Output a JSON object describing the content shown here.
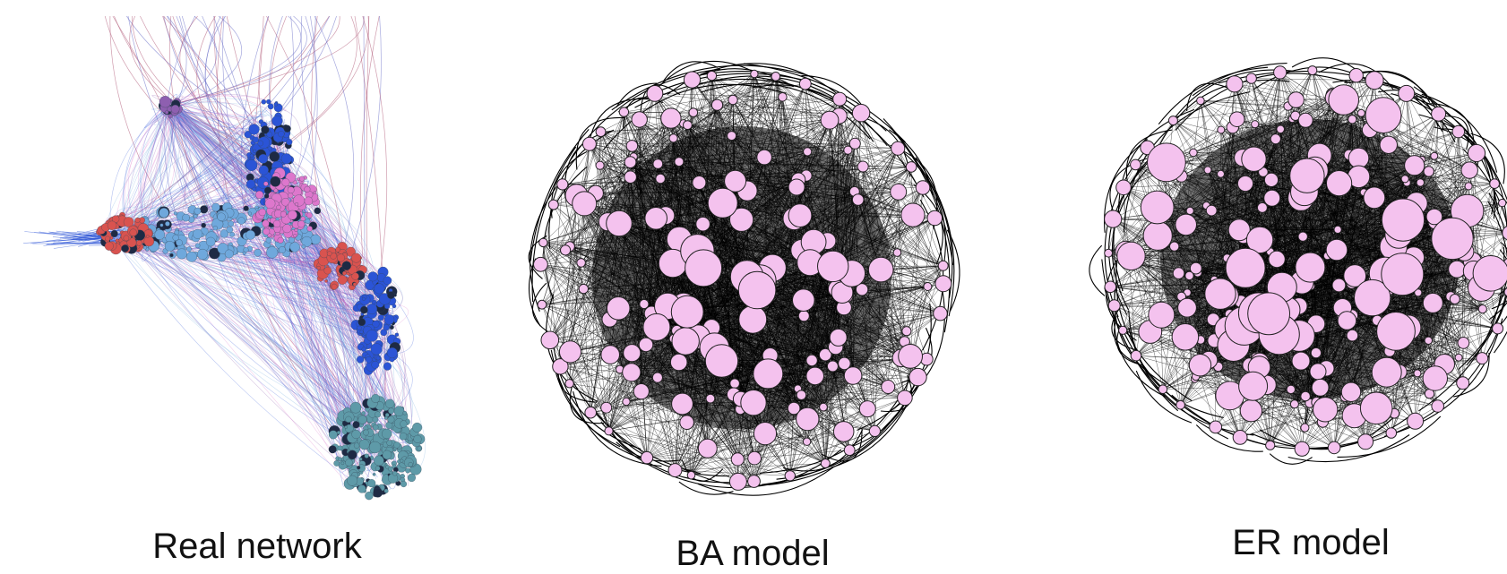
{
  "panels": [
    {
      "id": "real",
      "label": "Real network",
      "style": "community",
      "colors": {
        "light_blue": "#6fa8dc",
        "blue": "#2b54d6",
        "teal": "#5e9aa8",
        "red": "#d9534f",
        "pink": "#dd77cc",
        "purple": "#8e5fb0",
        "dark": "#1e2a44"
      }
    },
    {
      "id": "ba",
      "label": "BA model",
      "style": "scale-free",
      "colors": {
        "node_fill": "#f4c2ee",
        "node_stroke": "#222222",
        "edge": "#000000"
      }
    },
    {
      "id": "er",
      "label": "ER model",
      "style": "random",
      "colors": {
        "node_fill": "#f4c2ee",
        "node_stroke": "#222222",
        "edge": "#000000"
      }
    }
  ]
}
